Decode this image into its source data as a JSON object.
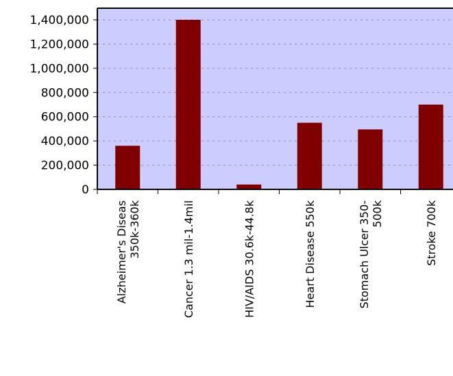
{
  "chart_data": {
    "type": "bar",
    "categories": [
      [
        "Alzheimer's Diseas",
        "350k-360k"
      ],
      [
        "Cancer 1.3 mil-1.4mil"
      ],
      [
        "HIV/AIDS 30.6k-44.8k"
      ],
      [
        "Heart Disease 550k"
      ],
      [
        "Stomach Ulcer 350-",
        "500k"
      ],
      [
        "Stroke 700k"
      ]
    ],
    "values": [
      360000,
      1400000,
      40000,
      550000,
      495000,
      700000
    ],
    "ylim": [
      0,
      1400000
    ],
    "yticks": [
      "0",
      "200,000",
      "400,000",
      "600,000",
      "800,000",
      "1,000,000",
      "1,200,000",
      "1,400,000"
    ],
    "title": "",
    "xlabel": "",
    "ylabel": "",
    "grid": true,
    "colors": {
      "bar": "#800000",
      "plot_bg": "#ccccff",
      "grid": "#8a8ab0",
      "axis": "#000000"
    }
  }
}
